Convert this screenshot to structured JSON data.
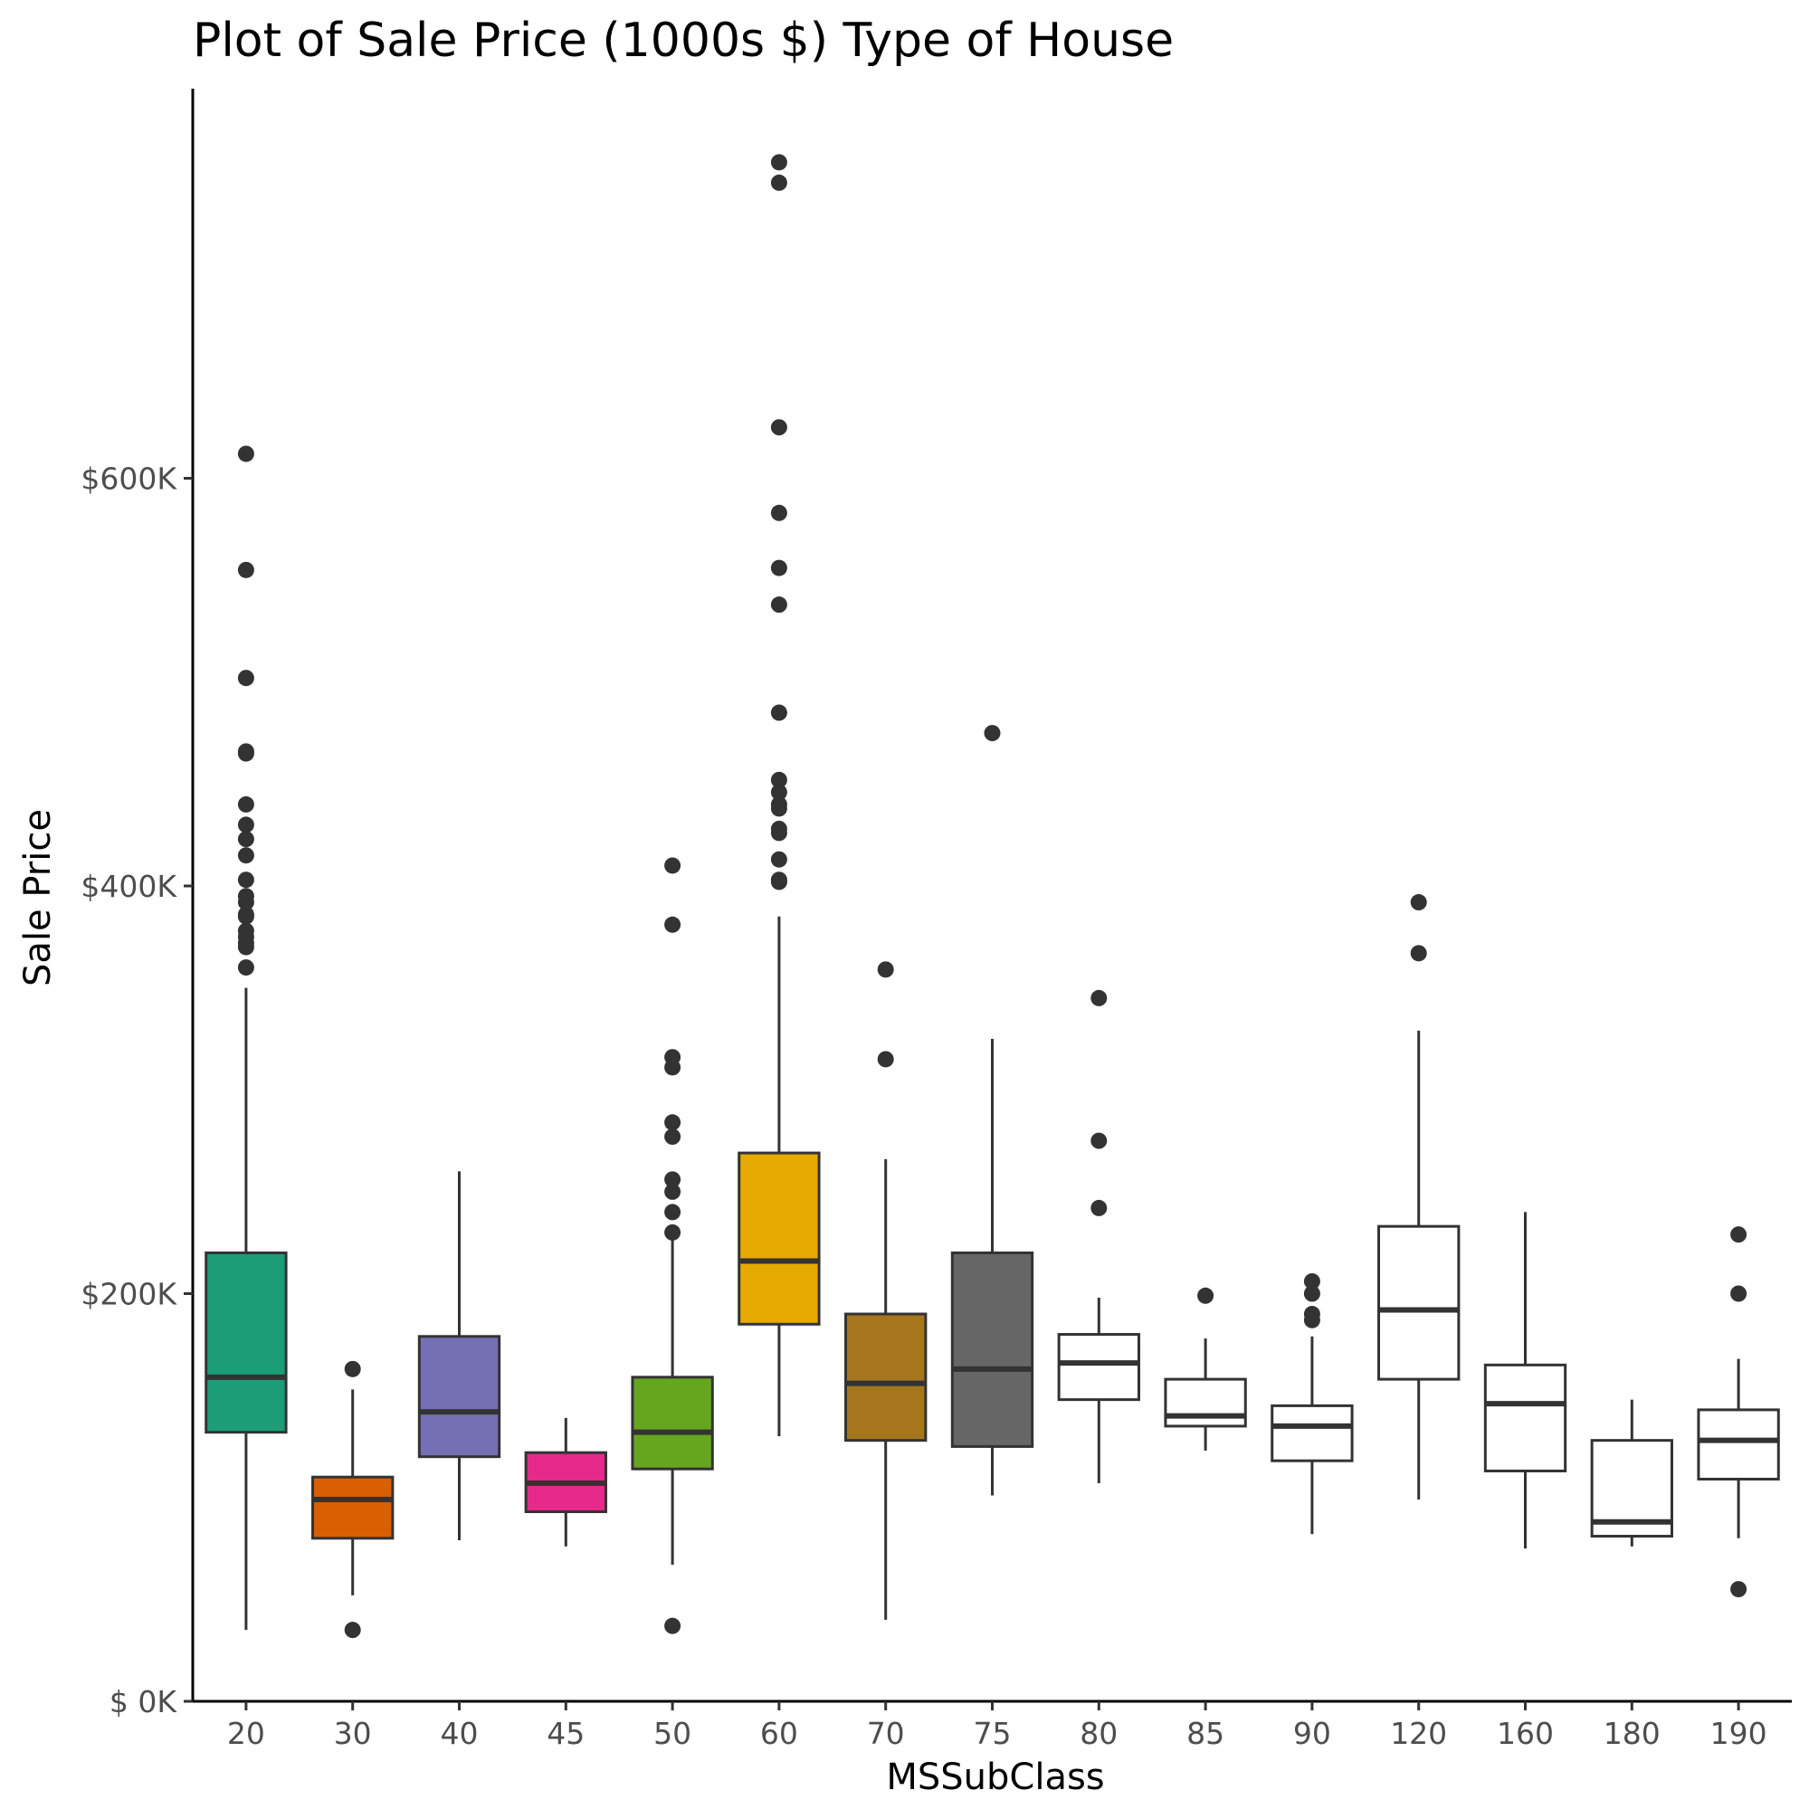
{
  "chart_data": {
    "type": "box",
    "title": "Plot of Sale Price (1000s $) Type of House",
    "xlabel": "MSSubClass",
    "ylabel": "Sale Price",
    "ylim": [
      -2,
      755
    ],
    "y_ticks": [
      {
        "value": 0,
        "label": "$  0K"
      },
      {
        "value": 200,
        "label": "$200K"
      },
      {
        "value": 400,
        "label": "$400K"
      },
      {
        "value": 600,
        "label": "$600K"
      }
    ],
    "categories": [
      "20",
      "30",
      "40",
      "45",
      "50",
      "60",
      "70",
      "75",
      "80",
      "85",
      "90",
      "120",
      "160",
      "180",
      "190"
    ],
    "boxes": [
      {
        "category": "20",
        "fill": "#1b9e77",
        "whisker_low": 35,
        "q1": 132,
        "median": 159,
        "q3": 220,
        "whisker_high": 350,
        "outliers": [
          612,
          555,
          502,
          466,
          465,
          440,
          430,
          423,
          415,
          403,
          395,
          392,
          386,
          385,
          378,
          375,
          372,
          370,
          360
        ]
      },
      {
        "category": "30",
        "fill": "#d95f02",
        "whisker_low": 52,
        "q1": 80,
        "median": 99,
        "q3": 110,
        "whisker_high": 153,
        "outliers": [
          163,
          35
        ]
      },
      {
        "category": "40",
        "fill": "#7570b3",
        "whisker_low": 79,
        "q1": 120,
        "median": 142,
        "q3": 179,
        "whisker_high": 260,
        "outliers": []
      },
      {
        "category": "45",
        "fill": "#e7298a",
        "whisker_low": 76,
        "q1": 93,
        "median": 107,
        "q3": 122,
        "whisker_high": 139,
        "outliers": []
      },
      {
        "category": "50",
        "fill": "#66a61e",
        "whisker_low": 67,
        "q1": 114,
        "median": 132,
        "q3": 159,
        "whisker_high": 229,
        "outliers": [
          410,
          381,
          316,
          311,
          284,
          277,
          256,
          250,
          240,
          230,
          37
        ]
      },
      {
        "category": "60",
        "fill": "#e6ab02",
        "whisker_low": 130,
        "q1": 185,
        "median": 216,
        "q3": 269,
        "whisker_high": 385,
        "outliers": [
          755,
          745,
          625,
          583,
          556,
          538,
          485,
          452,
          446,
          440,
          438,
          428,
          426,
          413,
          402,
          403
        ]
      },
      {
        "category": "70",
        "fill": "#a6761d",
        "whisker_low": 40,
        "q1": 128,
        "median": 156,
        "q3": 190,
        "whisker_high": 266,
        "outliers": [
          359,
          315
        ]
      },
      {
        "category": "75",
        "fill": "#666666",
        "whisker_low": 101,
        "q1": 125,
        "median": 163,
        "q3": 220,
        "whisker_high": 325,
        "outliers": [
          475
        ]
      },
      {
        "category": "80",
        "fill": "#ffffff",
        "whisker_low": 107,
        "q1": 148,
        "median": 166,
        "q3": 180,
        "whisker_high": 198,
        "outliers": [
          345,
          275,
          242
        ]
      },
      {
        "category": "85",
        "fill": "#ffffff",
        "whisker_low": 123,
        "q1": 135,
        "median": 140,
        "q3": 158,
        "whisker_high": 178,
        "outliers": [
          199
        ]
      },
      {
        "category": "90",
        "fill": "#ffffff",
        "whisker_low": 82,
        "q1": 118,
        "median": 135,
        "q3": 145,
        "whisker_high": 179,
        "outliers": [
          206,
          200,
          190,
          187
        ]
      },
      {
        "category": "120",
        "fill": "#ffffff",
        "whisker_low": 99,
        "q1": 158,
        "median": 192,
        "q3": 233,
        "whisker_high": 329,
        "outliers": [
          392,
          367
        ]
      },
      {
        "category": "160",
        "fill": "#ffffff",
        "whisker_low": 75,
        "q1": 113,
        "median": 146,
        "q3": 165,
        "whisker_high": 240,
        "outliers": []
      },
      {
        "category": "180",
        "fill": "#ffffff",
        "whisker_low": 76,
        "q1": 81,
        "median": 88,
        "q3": 128,
        "whisker_high": 148,
        "outliers": []
      },
      {
        "category": "190",
        "fill": "#ffffff",
        "whisker_low": 80,
        "q1": 109,
        "median": 128,
        "q3": 143,
        "whisker_high": 168,
        "outliers": [
          229,
          200,
          55
        ]
      }
    ]
  }
}
